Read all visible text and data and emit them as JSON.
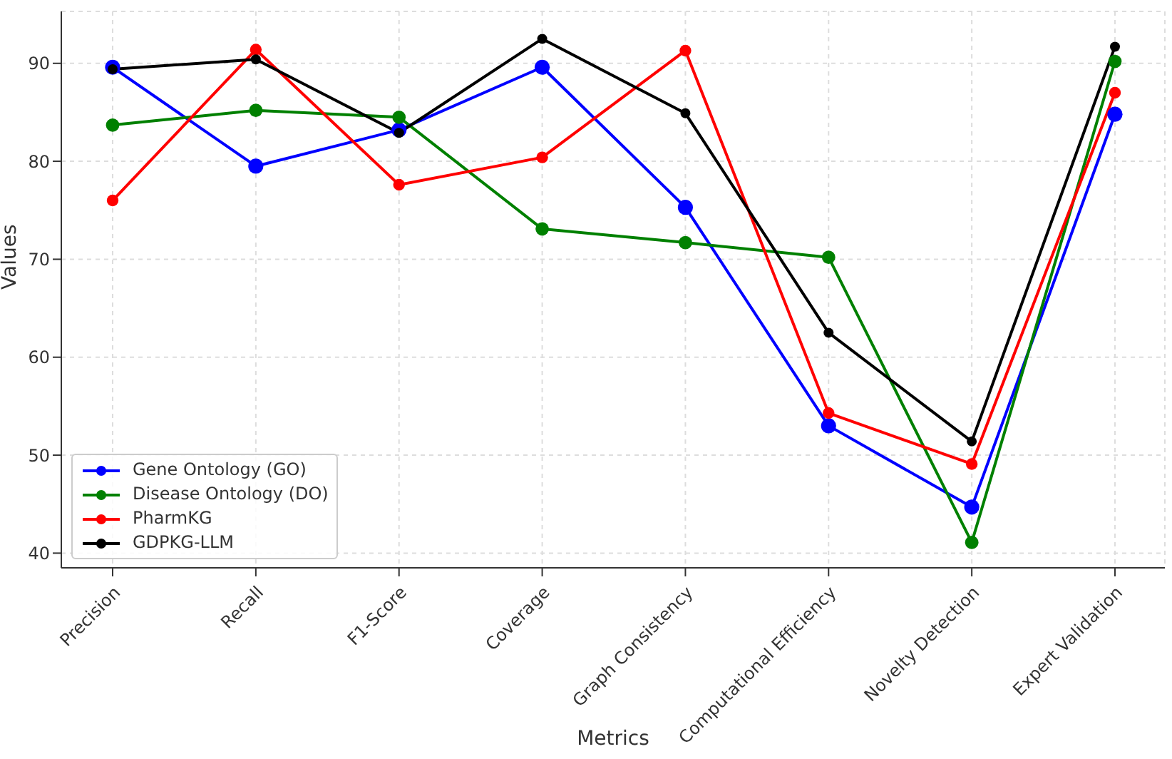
{
  "chart_data": {
    "type": "line",
    "xlabel": "Metrics",
    "ylabel": "Values",
    "categories": [
      "Precision",
      "Recall",
      "F1-Score",
      "Coverage",
      "Graph Consistency",
      "Computational Efficiency",
      "Novelty Detection",
      "Expert Validation"
    ],
    "series": [
      {
        "name": "Gene Ontology (GO)",
        "color": "#0000ff",
        "values": [
          89.6,
          79.5,
          83.2,
          89.6,
          75.3,
          53.0,
          44.7,
          84.8
        ]
      },
      {
        "name": "Disease Ontology (DO)",
        "color": "#008000",
        "values": [
          83.7,
          85.2,
          84.5,
          73.1,
          71.7,
          70.2,
          41.1,
          90.2
        ]
      },
      {
        "name": "PharmKG",
        "color": "#ff0000",
        "values": [
          76.0,
          91.4,
          77.6,
          80.4,
          91.3,
          54.3,
          49.1,
          87.0
        ]
      },
      {
        "name": "GDPKG-LLM",
        "color": "#000000",
        "values": [
          89.4,
          90.4,
          82.9,
          92.5,
          84.9,
          62.5,
          51.4,
          91.7
        ]
      }
    ],
    "ylim": [
      38.5,
      95.3
    ],
    "yticks": [
      40,
      50,
      60,
      70,
      80,
      90
    ],
    "grid": true,
    "legend": "bottom left",
    "marker": "circle",
    "line_style": "solid"
  }
}
